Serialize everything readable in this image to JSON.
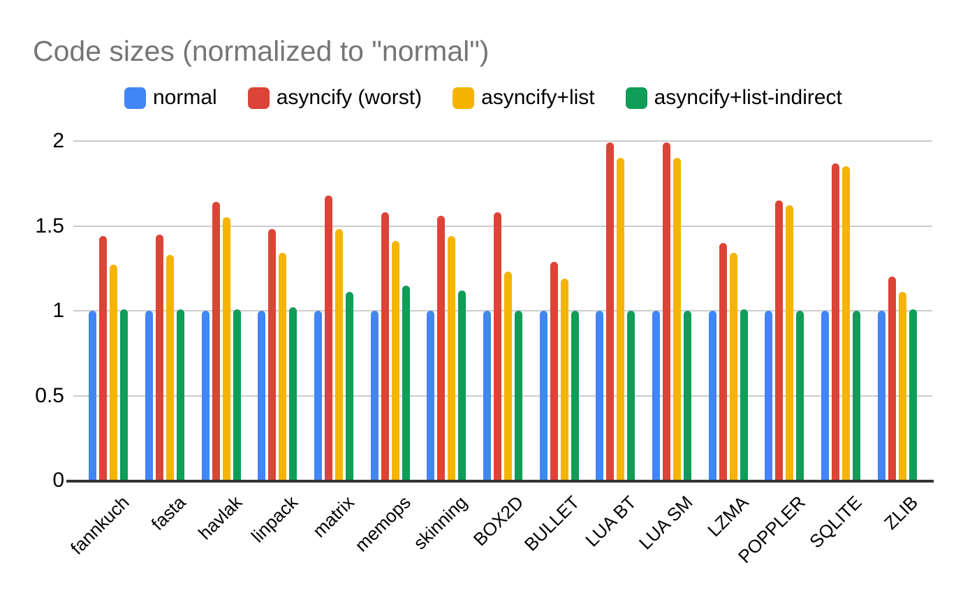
{
  "page": {
    "background": "#ffffff",
    "title_color": "#757575",
    "text_color": "#000000",
    "gridline_color": "#cccccc",
    "axis_line_color": "#333333"
  },
  "chart_data": {
    "type": "bar",
    "title": "Code sizes (normalized to \"normal\")",
    "categories": [
      "fannkuch",
      "fasta",
      "havlak",
      "linpack",
      "matrix",
      "memops",
      "skinning",
      "BOX2D",
      "BULLET",
      "LUA BT",
      "LUA SM",
      "LZMA",
      "POPPLER",
      "SQLITE",
      "ZLIB"
    ],
    "series": [
      {
        "name": "normal",
        "color": "#4285F4",
        "values": [
          1.0,
          1.0,
          1.0,
          1.0,
          1.0,
          1.0,
          1.0,
          1.0,
          1.0,
          1.0,
          1.0,
          1.0,
          1.0,
          1.0,
          1.0
        ]
      },
      {
        "name": "asyncify (worst)",
        "color": "#DB4437",
        "values": [
          1.44,
          1.45,
          1.64,
          1.48,
          1.68,
          1.58,
          1.56,
          1.58,
          1.29,
          1.99,
          1.99,
          1.4,
          1.65,
          1.87,
          1.2
        ]
      },
      {
        "name": "asyncify+list",
        "color": "#F4B400",
        "values": [
          1.27,
          1.33,
          1.55,
          1.34,
          1.48,
          1.41,
          1.44,
          1.23,
          1.19,
          1.9,
          1.9,
          1.34,
          1.62,
          1.85,
          1.11
        ]
      },
      {
        "name": "asyncify+list-indirect",
        "color": "#0F9D58",
        "values": [
          1.01,
          1.01,
          1.01,
          1.02,
          1.11,
          1.15,
          1.12,
          1.0,
          1.0,
          1.0,
          1.0,
          1.01,
          1.0,
          1.0,
          1.01
        ]
      }
    ],
    "xlabel": "",
    "ylabel": "",
    "ylim": [
      0,
      2
    ],
    "y_ticks": [
      "0",
      "0.5",
      "1",
      "1.5",
      "2"
    ],
    "grid": true,
    "legend_position": "top"
  }
}
